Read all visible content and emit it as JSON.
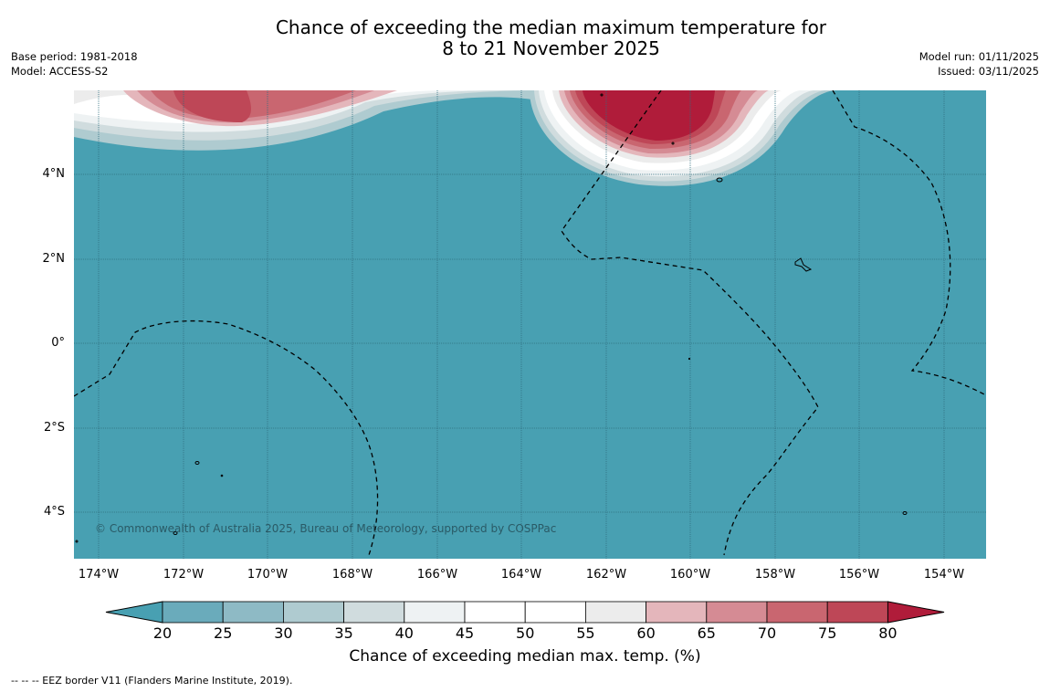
{
  "title": {
    "line1": "Chance of exceeding the median maximum temperature for",
    "line2": "8 to 21 November 2025"
  },
  "meta": {
    "base_period": "Base period: 1981-2018",
    "model": "Model: ACCESS-S2",
    "model_run": "Model run: 01/11/2025",
    "issued": "Issued: 03/11/2025"
  },
  "map": {
    "lat_labels": [
      "4°N",
      "2°N",
      "0°",
      "2°S",
      "4°S"
    ],
    "lon_labels": [
      "174°W",
      "172°W",
      "170°W",
      "168°W",
      "166°W",
      "164°W",
      "162°W",
      "160°W",
      "158°W",
      "156°W",
      "154°W"
    ],
    "copyright": "© Commonwealth of Australia 2025, Bureau of Meteorology, supported by COSPPac",
    "background_color": "#48a0b2"
  },
  "colorbar": {
    "ticks": [
      "20",
      "25",
      "30",
      "35",
      "40",
      "45",
      "50",
      "55",
      "60",
      "65",
      "70",
      "75",
      "80"
    ],
    "colors": [
      "#48a0b2",
      "#6aabbb",
      "#8ebac5",
      "#afcbd0",
      "#d0dcde",
      "#eef2f3",
      "#ffffff",
      "#ffffff",
      "#ececec",
      "#e4b6bb",
      "#d58b94",
      "#c96670",
      "#be4757",
      "#b01c3a"
    ],
    "label": "Chance of exceeding median max. temp. (%)"
  },
  "footnote": "--  --  -- EEZ border V11 (Flanders Marine Institute, 2019)."
}
